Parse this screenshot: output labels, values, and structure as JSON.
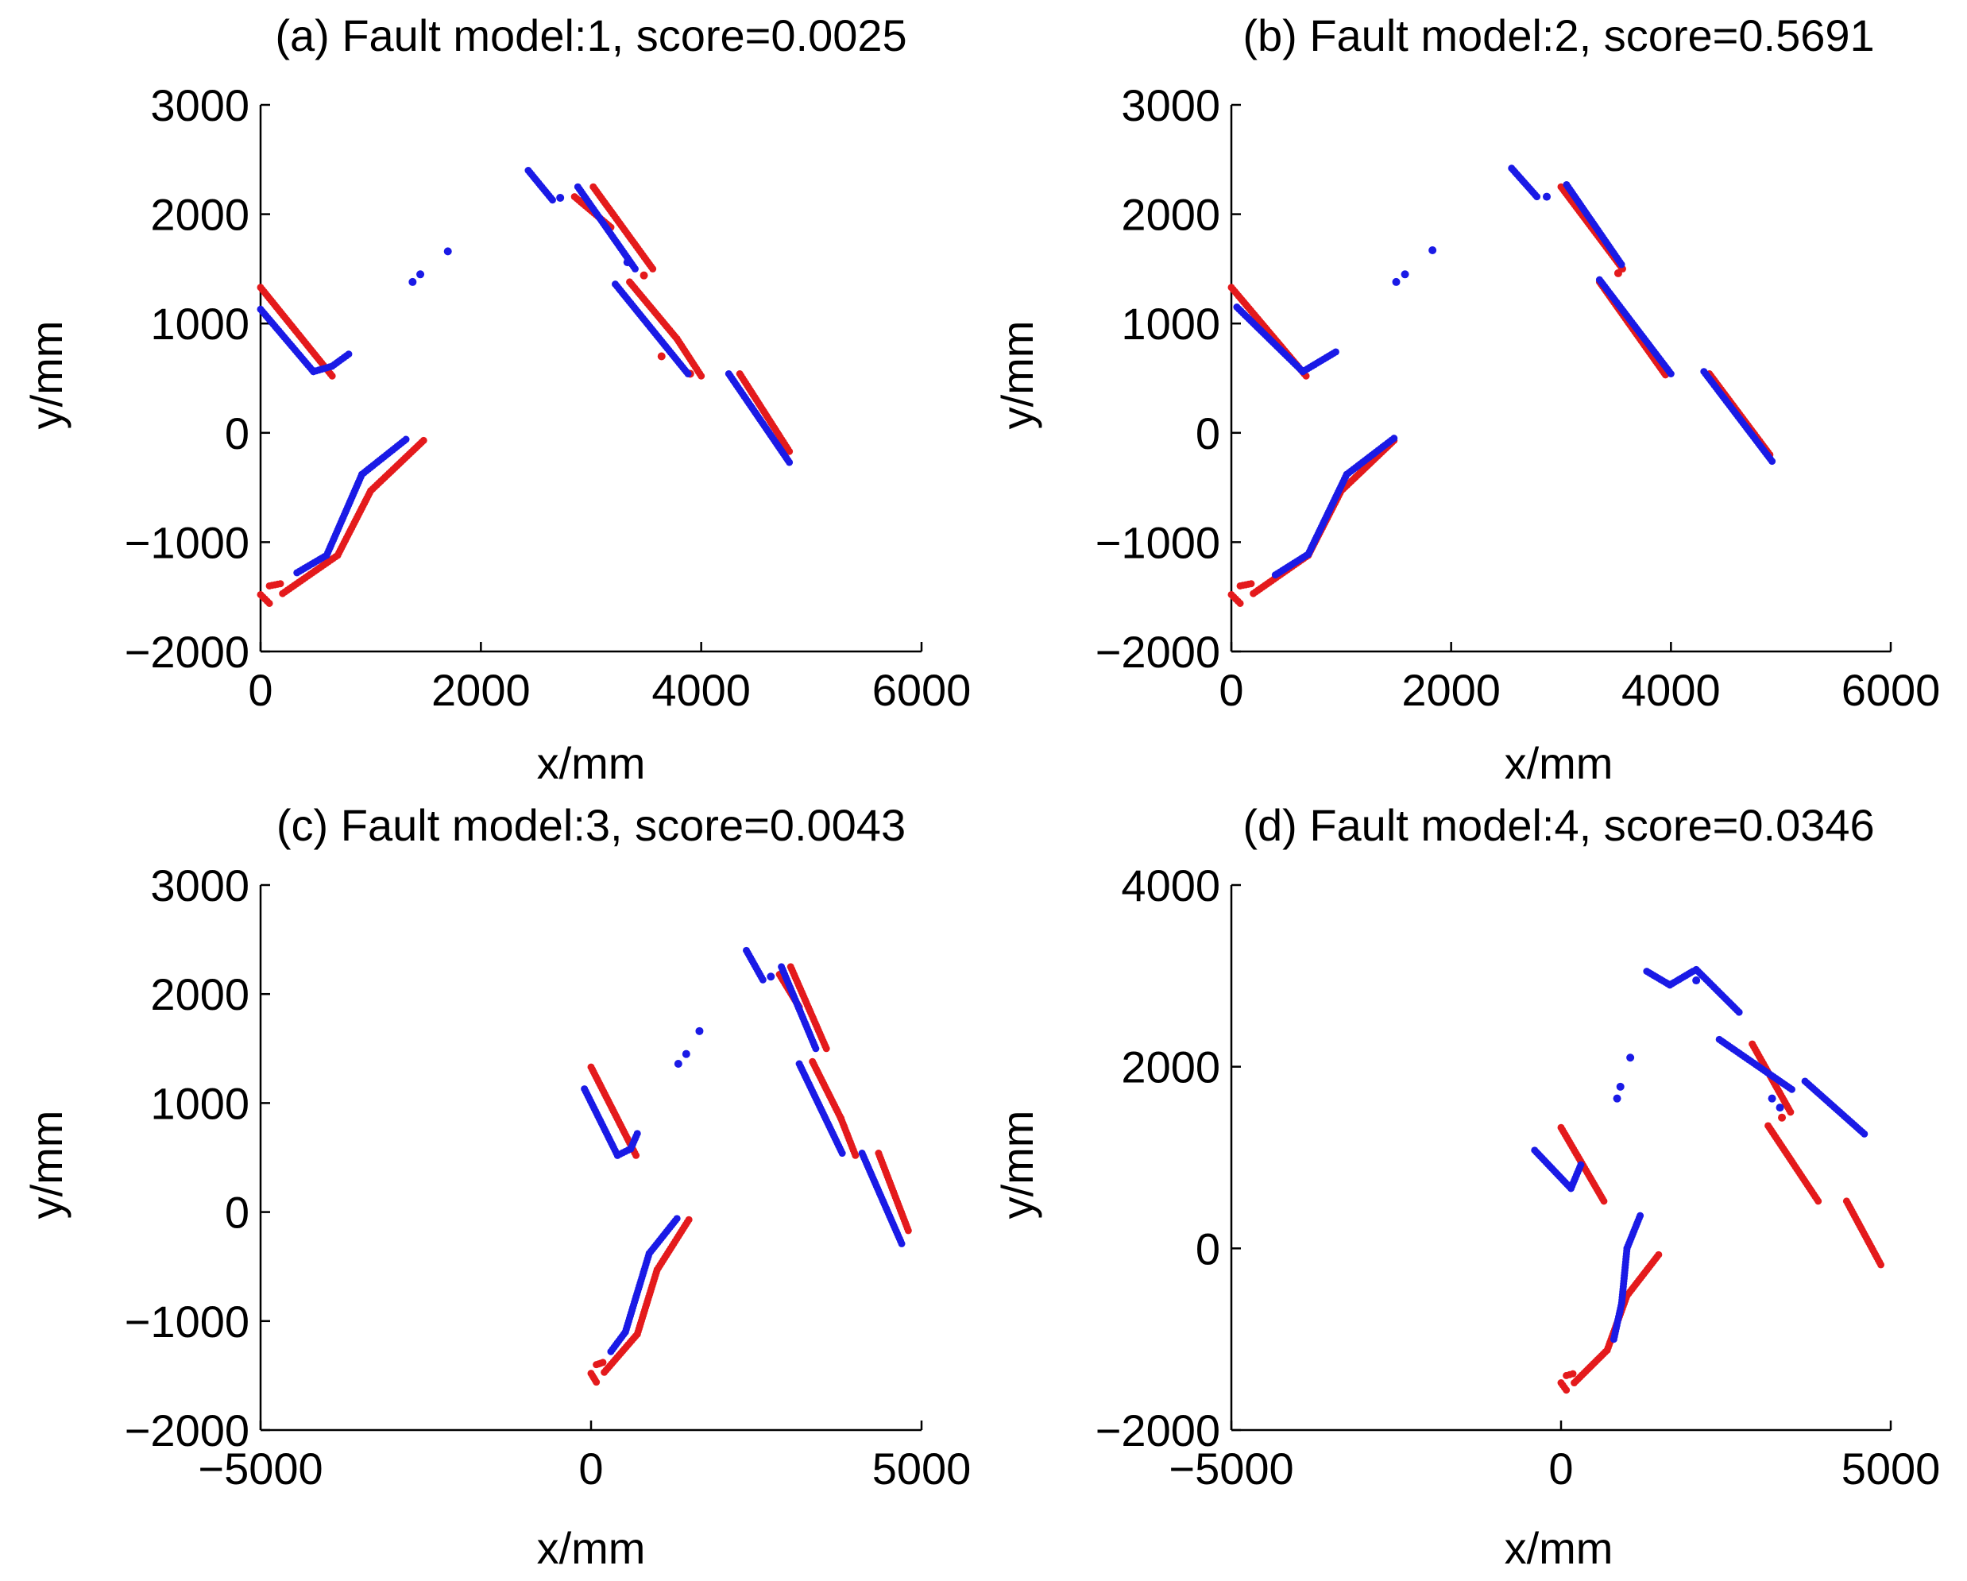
{
  "figure": {
    "background": "#ffffff",
    "colors": {
      "red_series": "#e41a1c",
      "blue_series": "#1a1ae6",
      "axis": "#000000"
    }
  },
  "chart_data": [
    {
      "id": "a",
      "type": "scatter",
      "title": "(a) Fault model:1, score=0.0025",
      "xlabel": "x/mm",
      "ylabel": "y/mm",
      "xlim": [
        0,
        6000
      ],
      "ylim": [
        -2000,
        3000
      ],
      "xticks": [
        0,
        2000,
        4000,
        6000
      ],
      "yticks": [
        -2000,
        -1000,
        0,
        1000,
        2000,
        3000
      ],
      "xtick_labels": [
        "0",
        "2000",
        "4000",
        "6000"
      ],
      "ytick_labels": [
        "−2000",
        "−1000",
        "0",
        "1000",
        "2000",
        "3000"
      ],
      "series": [
        {
          "name": "red",
          "color": "#e41a1c",
          "segments": [
            [
              [
                0,
                1330
              ],
              [
                650,
                520
              ]
            ],
            [
              [
                0,
                -1480
              ],
              [
                80,
                -1560
              ]
            ],
            [
              [
                80,
                -1400
              ],
              [
                180,
                -1380
              ]
            ],
            [
              [
                200,
                -1470
              ],
              [
                700,
                -1120
              ]
            ],
            [
              [
                700,
                -1120
              ],
              [
                1000,
                -530
              ]
            ],
            [
              [
                1000,
                -530
              ],
              [
                1480,
                -70
              ]
            ],
            [
              [
                2850,
                2160
              ],
              [
                3180,
                1880
              ]
            ],
            [
              [
                3020,
                2250
              ],
              [
                3560,
                1500
              ]
            ],
            [
              [
                3350,
                1380
              ],
              [
                3780,
                860
              ]
            ],
            [
              [
                3780,
                860
              ],
              [
                4000,
                520
              ]
            ],
            [
              [
                4350,
                540
              ],
              [
                4800,
                -170
              ]
            ]
          ],
          "points": [
            [
              3480,
              1440
            ],
            [
              3640,
              700
            ],
            [
              3900,
              540
            ]
          ]
        },
        {
          "name": "blue",
          "color": "#1a1ae6",
          "segments": [
            [
              [
                0,
                1130
              ],
              [
                480,
                560
              ]
            ],
            [
              [
                480,
                560
              ],
              [
                650,
                610
              ]
            ],
            [
              [
                650,
                610
              ],
              [
                800,
                720
              ]
            ],
            [
              [
                330,
                -1280
              ],
              [
                600,
                -1120
              ]
            ],
            [
              [
                600,
                -1120
              ],
              [
                920,
                -380
              ]
            ],
            [
              [
                920,
                -380
              ],
              [
                1320,
                -60
              ]
            ],
            [
              [
                2430,
                2400
              ],
              [
                2650,
                2130
              ]
            ],
            [
              [
                2880,
                2250
              ],
              [
                3400,
                1500
              ]
            ],
            [
              [
                3220,
                1360
              ],
              [
                3880,
                540
              ]
            ],
            [
              [
                4250,
                540
              ],
              [
                4800,
                -270
              ]
            ]
          ],
          "points": [
            [
              1380,
              1380
            ],
            [
              1450,
              1450
            ],
            [
              1700,
              1660
            ],
            [
              2720,
              2150
            ],
            [
              3330,
              1560
            ]
          ]
        }
      ]
    },
    {
      "id": "b",
      "type": "scatter",
      "title": "(b) Fault model:2, score=0.5691",
      "xlabel": "x/mm",
      "ylabel": "y/mm",
      "xlim": [
        0,
        6000
      ],
      "ylim": [
        -2000,
        3000
      ],
      "xticks": [
        0,
        2000,
        4000,
        6000
      ],
      "yticks": [
        -2000,
        -1000,
        0,
        1000,
        2000,
        3000
      ],
      "xtick_labels": [
        "0",
        "2000",
        "4000",
        "6000"
      ],
      "ytick_labels": [
        "−2000",
        "−1000",
        "0",
        "1000",
        "2000",
        "3000"
      ],
      "series": [
        {
          "name": "red",
          "color": "#e41a1c",
          "segments": [
            [
              [
                0,
                1330
              ],
              [
                680,
                520
              ]
            ],
            [
              [
                0,
                -1480
              ],
              [
                80,
                -1560
              ]
            ],
            [
              [
                80,
                -1400
              ],
              [
                180,
                -1380
              ]
            ],
            [
              [
                200,
                -1470
              ],
              [
                700,
                -1120
              ]
            ],
            [
              [
                700,
                -1120
              ],
              [
                1000,
                -530
              ]
            ],
            [
              [
                1000,
                -530
              ],
              [
                1480,
                -70
              ]
            ],
            [
              [
                3000,
                2250
              ],
              [
                3560,
                1500
              ]
            ],
            [
              [
                3350,
                1380
              ],
              [
                3950,
                530
              ]
            ],
            [
              [
                4350,
                540
              ],
              [
                4900,
                -200
              ]
            ]
          ],
          "points": [
            [
              3520,
              1460
            ]
          ]
        },
        {
          "name": "blue",
          "color": "#1a1ae6",
          "segments": [
            [
              [
                50,
                1150
              ],
              [
                650,
                560
              ]
            ],
            [
              [
                650,
                560
              ],
              [
                950,
                740
              ]
            ],
            [
              [
                400,
                -1300
              ],
              [
                700,
                -1110
              ]
            ],
            [
              [
                700,
                -1110
              ],
              [
                1050,
                -380
              ]
            ],
            [
              [
                1050,
                -380
              ],
              [
                1480,
                -50
              ]
            ],
            [
              [
                2550,
                2420
              ],
              [
                2780,
                2160
              ]
            ],
            [
              [
                3050,
                2270
              ],
              [
                3550,
                1540
              ]
            ],
            [
              [
                3350,
                1400
              ],
              [
                4000,
                540
              ]
            ],
            [
              [
                4300,
                560
              ],
              [
                4920,
                -260
              ]
            ]
          ],
          "points": [
            [
              1500,
              1380
            ],
            [
              1580,
              1450
            ],
            [
              1830,
              1670
            ],
            [
              2870,
              2160
            ]
          ]
        }
      ]
    },
    {
      "id": "c",
      "type": "scatter",
      "title": "(c) Fault model:3, score=0.0043",
      "xlabel": "x/mm",
      "ylabel": "y/mm",
      "xlim": [
        -5000,
        5000
      ],
      "ylim": [
        -2000,
        3000
      ],
      "xticks": [
        -5000,
        0,
        5000
      ],
      "yticks": [
        -2000,
        -1000,
        0,
        1000,
        2000,
        3000
      ],
      "xtick_labels": [
        "−5000",
        "0",
        "5000"
      ],
      "ytick_labels": [
        "−2000",
        "−1000",
        "0",
        "1000",
        "2000",
        "3000"
      ],
      "series": [
        {
          "name": "red",
          "color": "#e41a1c",
          "segments": [
            [
              [
                0,
                1330
              ],
              [
                680,
                520
              ]
            ],
            [
              [
                0,
                -1480
              ],
              [
                80,
                -1560
              ]
            ],
            [
              [
                80,
                -1400
              ],
              [
                180,
                -1380
              ]
            ],
            [
              [
                200,
                -1470
              ],
              [
                700,
                -1120
              ]
            ],
            [
              [
                700,
                -1120
              ],
              [
                1000,
                -530
              ]
            ],
            [
              [
                1000,
                -530
              ],
              [
                1480,
                -70
              ]
            ],
            [
              [
                2850,
                2180
              ],
              [
                3150,
                1880
              ]
            ],
            [
              [
                3020,
                2250
              ],
              [
                3560,
                1500
              ]
            ],
            [
              [
                3350,
                1380
              ],
              [
                3780,
                860
              ]
            ],
            [
              [
                3780,
                860
              ],
              [
                4000,
                520
              ]
            ],
            [
              [
                4350,
                540
              ],
              [
                4800,
                -170
              ]
            ]
          ],
          "points": []
        },
        {
          "name": "blue",
          "color": "#1a1ae6",
          "segments": [
            [
              [
                -100,
                1130
              ],
              [
                400,
                520
              ]
            ],
            [
              [
                400,
                520
              ],
              [
                600,
                580
              ]
            ],
            [
              [
                600,
                580
              ],
              [
                700,
                720
              ]
            ],
            [
              [
                300,
                -1280
              ],
              [
                520,
                -1100
              ]
            ],
            [
              [
                520,
                -1100
              ],
              [
                880,
                -380
              ]
            ],
            [
              [
                880,
                -380
              ],
              [
                1300,
                -60
              ]
            ],
            [
              [
                2350,
                2400
              ],
              [
                2600,
                2130
              ]
            ],
            [
              [
                2880,
                2250
              ],
              [
                3400,
                1500
              ]
            ],
            [
              [
                3150,
                1360
              ],
              [
                3800,
                540
              ]
            ],
            [
              [
                4100,
                540
              ],
              [
                4700,
                -290
              ]
            ]
          ],
          "points": [
            [
              1320,
              1360
            ],
            [
              1440,
              1450
            ],
            [
              1640,
              1660
            ],
            [
              2720,
              2160
            ]
          ]
        }
      ]
    },
    {
      "id": "d",
      "type": "scatter",
      "title": "(d) Fault model:4, score=0.0346",
      "xlabel": "x/mm",
      "ylabel": "y/mm",
      "xlim": [
        -5000,
        5000
      ],
      "ylim": [
        -2000,
        4000
      ],
      "xticks": [
        -5000,
        0,
        5000
      ],
      "yticks": [
        -2000,
        0,
        2000,
        4000
      ],
      "xtick_labels": [
        "−5000",
        "0",
        "5000"
      ],
      "ytick_labels": [
        "−2000",
        "0",
        "2000",
        "4000"
      ],
      "series": [
        {
          "name": "red",
          "color": "#e41a1c",
          "segments": [
            [
              [
                0,
                1330
              ],
              [
                650,
                520
              ]
            ],
            [
              [
                0,
                -1480
              ],
              [
                80,
                -1560
              ]
            ],
            [
              [
                80,
                -1400
              ],
              [
                180,
                -1380
              ]
            ],
            [
              [
                200,
                -1480
              ],
              [
                700,
                -1120
              ]
            ],
            [
              [
                700,
                -1120
              ],
              [
                1000,
                -520
              ]
            ],
            [
              [
                1000,
                -520
              ],
              [
                1480,
                -70
              ]
            ],
            [
              [
                2900,
                2250
              ],
              [
                3480,
                1500
              ]
            ],
            [
              [
                3140,
                1350
              ],
              [
                3900,
                520
              ]
            ],
            [
              [
                4330,
                520
              ],
              [
                4850,
                -180
              ]
            ]
          ],
          "points": [
            [
              3350,
              1440
            ]
          ]
        },
        {
          "name": "blue",
          "color": "#1a1ae6",
          "segments": [
            [
              [
                -400,
                1080
              ],
              [
                150,
                660
              ]
            ],
            [
              [
                150,
                660
              ],
              [
                300,
                920
              ]
            ],
            [
              [
                800,
                -1000
              ],
              [
                920,
                -600
              ]
            ],
            [
              [
                920,
                -600
              ],
              [
                1000,
                0
              ]
            ],
            [
              [
                1000,
                0
              ],
              [
                1200,
                360
              ]
            ],
            [
              [
                1300,
                3050
              ],
              [
                1650,
                2900
              ]
            ],
            [
              [
                1650,
                2900
              ],
              [
                2000,
                3050
              ]
            ],
            [
              [
                2050,
                3070
              ],
              [
                2700,
                2600
              ]
            ],
            [
              [
                2400,
                2300
              ],
              [
                3500,
                1750
              ]
            ],
            [
              [
                3700,
                1840
              ],
              [
                4600,
                1260
              ]
            ]
          ],
          "points": [
            [
              850,
              1650
            ],
            [
              900,
              1780
            ],
            [
              1050,
              2100
            ],
            [
              2050,
              2950
            ],
            [
              3200,
              1650
            ],
            [
              3320,
              1550
            ]
          ]
        }
      ]
    }
  ]
}
